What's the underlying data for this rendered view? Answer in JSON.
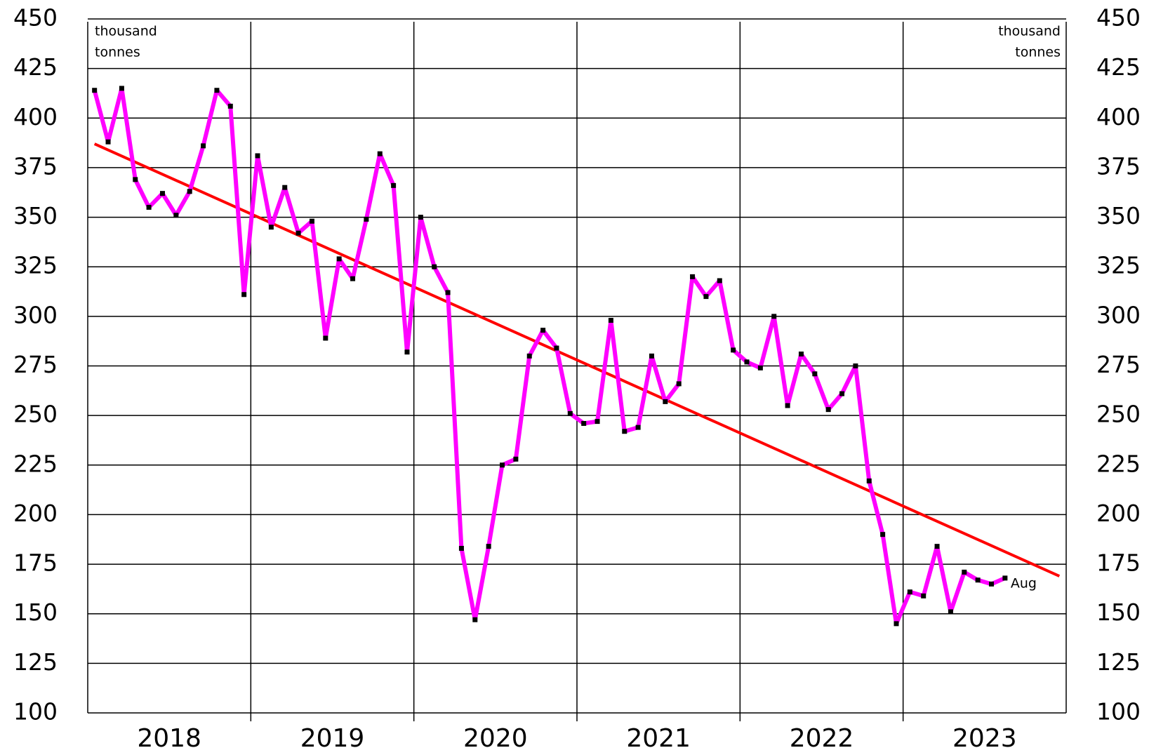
{
  "chart_data": {
    "type": "line",
    "years": [
      "2018",
      "2019",
      "2020",
      "2021",
      "2022",
      "2023"
    ],
    "series": [
      {
        "color": "#ff00ff",
        "marker_color": "#000000",
        "values": [
          414,
          388,
          415,
          369,
          355,
          362,
          351,
          363,
          386,
          414,
          406,
          311,
          381,
          345,
          365,
          342,
          348,
          289,
          329,
          319,
          349,
          382,
          366,
          282,
          350,
          325,
          312,
          183,
          147,
          184,
          225,
          228,
          280,
          293,
          284,
          251,
          246,
          247,
          298,
          242,
          244,
          280,
          257,
          266,
          320,
          310,
          318,
          283,
          277,
          274,
          300,
          255,
          281,
          271,
          253,
          261,
          275,
          217,
          190,
          145,
          161,
          159,
          184,
          151,
          171,
          167,
          165,
          168
        ]
      }
    ],
    "trend": {
      "color": "#ff0000",
      "start": 387,
      "end": 169
    },
    "ylim": [
      100,
      450
    ],
    "yticks": [
      100,
      125,
      150,
      175,
      200,
      225,
      250,
      275,
      300,
      325,
      350,
      375,
      400,
      425,
      450
    ],
    "unit_label": [
      "thousand",
      "tonnes"
    ],
    "last_point_label": "Aug",
    "grid": true
  }
}
